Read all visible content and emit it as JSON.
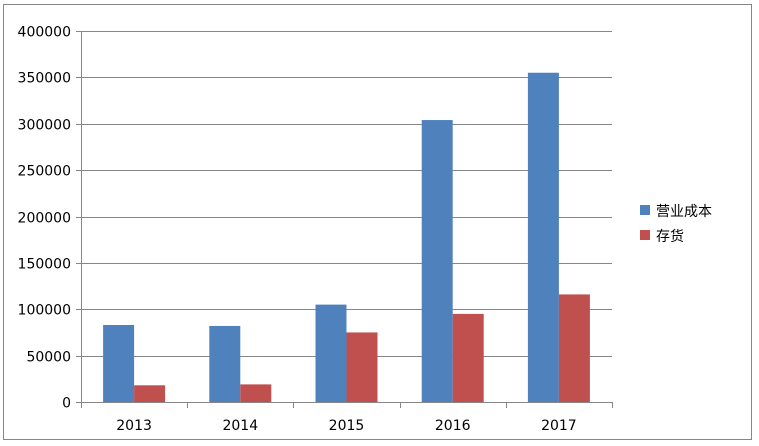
{
  "chart_data": {
    "type": "bar",
    "title": "",
    "xlabel": "",
    "ylabel": "",
    "categories": [
      "2013",
      "2014",
      "2015",
      "2016",
      "2017"
    ],
    "series": [
      {
        "name": "营业成本",
        "values": [
          83000,
          82000,
          105000,
          304000,
          355000
        ],
        "color": "#4f81bd"
      },
      {
        "name": "存货",
        "values": [
          18000,
          19000,
          75000,
          95000,
          116000
        ],
        "color": "#c0504d"
      }
    ],
    "ylim": [
      0,
      400000
    ],
    "yticks": [
      0,
      50000,
      100000,
      150000,
      200000,
      250000,
      300000,
      350000,
      400000
    ],
    "ytick_labels": [
      "0",
      "50000",
      "100000",
      "150000",
      "200000",
      "250000",
      "300000",
      "350000",
      "400000"
    ],
    "grid": true,
    "legend_position": "right"
  }
}
